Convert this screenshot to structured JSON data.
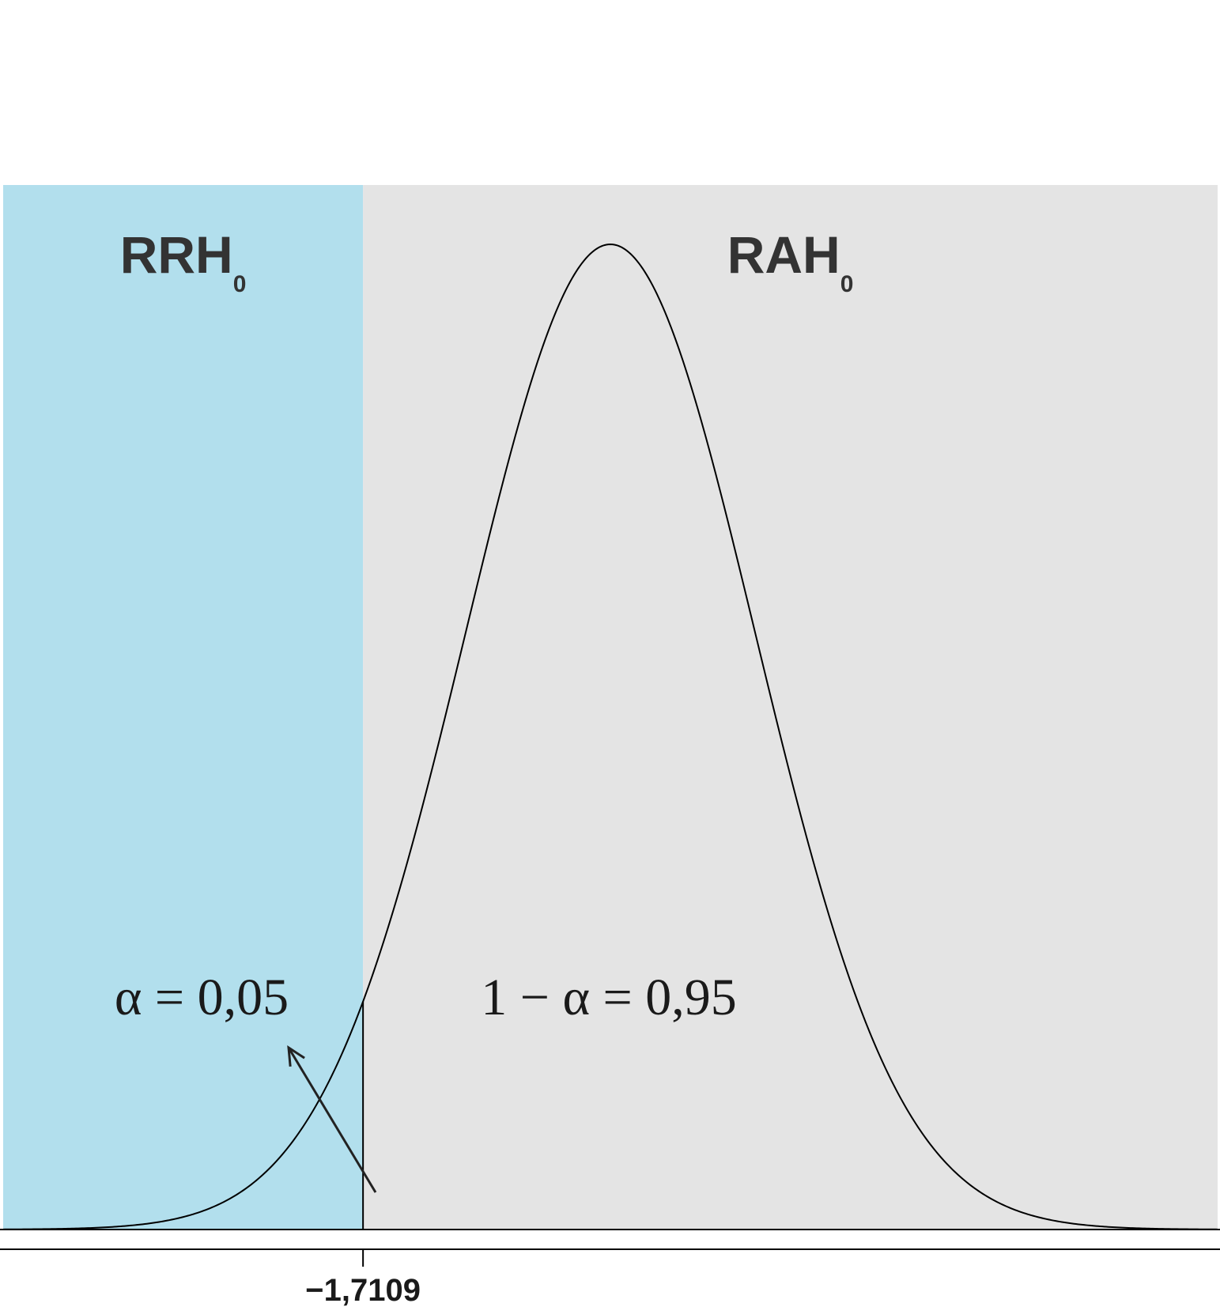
{
  "chart_data": {
    "type": "area",
    "distribution": "t",
    "x_range": [
      -4.2,
      4.2
    ],
    "critical_value": -1.7109,
    "critical_label": "−1,7109",
    "regions": [
      {
        "name": "RRH",
        "subscript": "0",
        "color": "#b2dfed",
        "side": "left"
      },
      {
        "name": "RAH",
        "subscript": "0",
        "color": "#e4e4e4",
        "side": "right"
      }
    ],
    "area_labels": {
      "left": "α = 0,05",
      "right": "1 − α = 0,95"
    },
    "alpha": 0.05,
    "confidence": 0.95,
    "curve_color": "#000000"
  }
}
